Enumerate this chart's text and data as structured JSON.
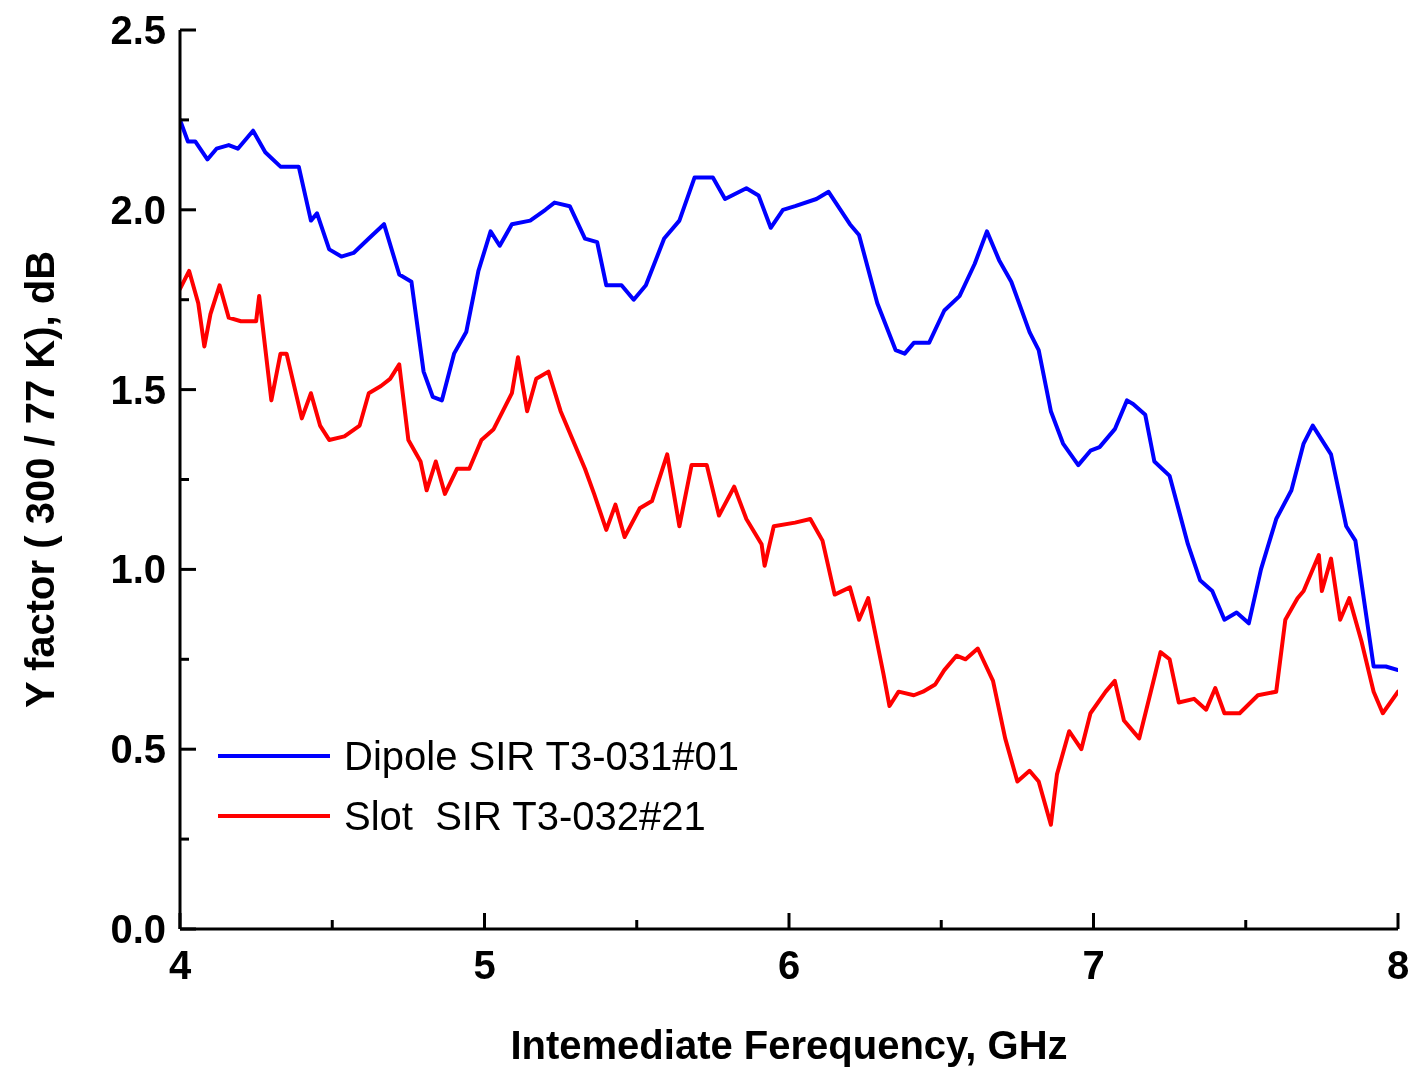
{
  "chart_data": {
    "type": "line",
    "xlabel": "Intemediate Ferequency, GHz",
    "ylabel": "Y factor ( 300 / 77 K), dB",
    "xlim": [
      4,
      8
    ],
    "ylim": [
      0,
      2.5
    ],
    "xticks": [
      4,
      {
        "value": 4.5,
        "label": null
      },
      5,
      {
        "value": 5.5,
        "label": null
      },
      6,
      {
        "value": 6.5,
        "label": null
      },
      7,
      {
        "value": 7.5,
        "label": null
      },
      8
    ],
    "yticks": [
      {
        "value": 0,
        "label": "0.0"
      },
      {
        "value": 0.25,
        "label": null
      },
      0.5,
      {
        "value": 0.75,
        "label": null
      },
      {
        "value": 1,
        "label": "1.0"
      },
      {
        "value": 1.25,
        "label": null
      },
      1.5,
      {
        "value": 1.75,
        "label": null
      },
      {
        "value": 2,
        "label": "2.0"
      },
      {
        "value": 2.25,
        "label": null
      },
      2.5
    ],
    "grid": false,
    "legend": "bottom left",
    "marker": "none",
    "line_style": "solid",
    "series": [
      {
        "name": "Dipole SIR T3-031#01",
        "color": "#0000ff",
        "x": [
          4.0,
          4.026,
          4.05,
          4.09,
          4.12,
          4.16,
          4.19,
          4.24,
          4.28,
          4.33,
          4.39,
          4.43,
          4.45,
          4.49,
          4.53,
          4.57,
          4.62,
          4.67,
          4.72,
          4.76,
          4.8,
          4.83,
          4.86,
          4.9,
          4.94,
          4.98,
          5.02,
          5.05,
          5.09,
          5.15,
          5.2,
          5.23,
          5.28,
          5.33,
          5.37,
          5.4,
          5.45,
          5.49,
          5.53,
          5.59,
          5.64,
          5.69,
          5.75,
          5.79,
          5.86,
          5.9,
          5.94,
          5.98,
          6.02,
          6.09,
          6.13,
          6.2,
          6.23,
          6.29,
          6.35,
          6.38,
          6.41,
          6.46,
          6.51,
          6.56,
          6.61,
          6.65,
          6.69,
          6.73,
          6.79,
          6.82,
          6.86,
          6.9,
          6.95,
          6.99,
          7.02,
          7.07,
          7.11,
          7.13,
          7.17,
          7.2,
          7.25,
          7.31,
          7.35,
          7.39,
          7.43,
          7.47,
          7.51,
          7.55,
          7.6,
          7.65,
          7.69,
          7.72,
          7.78,
          7.83,
          7.86,
          7.92,
          7.96,
          8.0
        ],
        "values": [
          2.25,
          2.19,
          2.19,
          2.14,
          2.17,
          2.18,
          2.17,
          2.22,
          2.16,
          2.12,
          2.12,
          1.97,
          1.99,
          1.89,
          1.87,
          1.88,
          1.92,
          1.96,
          1.82,
          1.8,
          1.55,
          1.48,
          1.47,
          1.6,
          1.66,
          1.83,
          1.94,
          1.9,
          1.96,
          1.97,
          2.0,
          2.02,
          2.01,
          1.92,
          1.91,
          1.79,
          1.79,
          1.75,
          1.79,
          1.92,
          1.97,
          2.09,
          2.09,
          2.03,
          2.06,
          2.04,
          1.95,
          2.0,
          2.01,
          2.03,
          2.05,
          1.96,
          1.93,
          1.74,
          1.61,
          1.6,
          1.63,
          1.63,
          1.72,
          1.76,
          1.85,
          1.94,
          1.86,
          1.8,
          1.66,
          1.61,
          1.44,
          1.35,
          1.29,
          1.33,
          1.34,
          1.39,
          1.47,
          1.46,
          1.43,
          1.3,
          1.26,
          1.07,
          0.97,
          0.94,
          0.86,
          0.88,
          0.85,
          1.0,
          1.14,
          1.22,
          1.35,
          1.4,
          1.32,
          1.12,
          1.08,
          0.73,
          0.73,
          0.72
        ]
      },
      {
        "name": "Slot  SIR T3-032#21",
        "color": "#ff0000",
        "x": [
          4.0,
          4.03,
          4.06,
          4.08,
          4.1,
          4.13,
          4.16,
          4.2,
          4.25,
          4.26,
          4.3,
          4.33,
          4.35,
          4.4,
          4.43,
          4.46,
          4.49,
          4.54,
          4.59,
          4.62,
          4.66,
          4.69,
          4.72,
          4.75,
          4.79,
          4.81,
          4.84,
          4.87,
          4.91,
          4.95,
          4.99,
          5.03,
          5.06,
          5.09,
          5.11,
          5.14,
          5.17,
          5.21,
          5.25,
          5.29,
          5.33,
          5.36,
          5.4,
          5.43,
          5.46,
          5.51,
          5.55,
          5.6,
          5.64,
          5.68,
          5.73,
          5.77,
          5.82,
          5.86,
          5.91,
          5.92,
          5.95,
          6.02,
          6.07,
          6.11,
          6.15,
          6.2,
          6.23,
          6.26,
          6.31,
          6.33,
          6.36,
          6.41,
          6.44,
          6.48,
          6.51,
          6.55,
          6.58,
          6.62,
          6.67,
          6.71,
          6.75,
          6.79,
          6.82,
          6.86,
          6.88,
          6.92,
          6.96,
          6.99,
          7.04,
          7.07,
          7.1,
          7.15,
          7.2,
          7.22,
          7.25,
          7.28,
          7.33,
          7.37,
          7.4,
          7.43,
          7.48,
          7.54,
          7.6,
          7.63,
          7.67,
          7.69,
          7.74,
          7.75,
          7.78,
          7.81,
          7.84,
          7.88,
          7.92,
          7.95,
          8.0
        ],
        "values": [
          1.78,
          1.83,
          1.74,
          1.62,
          1.71,
          1.79,
          1.7,
          1.69,
          1.69,
          1.76,
          1.47,
          1.6,
          1.6,
          1.42,
          1.49,
          1.4,
          1.36,
          1.37,
          1.4,
          1.49,
          1.51,
          1.53,
          1.57,
          1.36,
          1.3,
          1.22,
          1.3,
          1.21,
          1.28,
          1.28,
          1.36,
          1.39,
          1.44,
          1.49,
          1.59,
          1.44,
          1.53,
          1.55,
          1.44,
          1.36,
          1.28,
          1.21,
          1.11,
          1.18,
          1.09,
          1.17,
          1.19,
          1.32,
          1.12,
          1.29,
          1.29,
          1.15,
          1.23,
          1.14,
          1.07,
          1.01,
          1.12,
          1.13,
          1.14,
          1.08,
          0.93,
          0.95,
          0.86,
          0.92,
          0.71,
          0.62,
          0.66,
          0.65,
          0.66,
          0.68,
          0.72,
          0.76,
          0.75,
          0.78,
          0.69,
          0.53,
          0.41,
          0.44,
          0.41,
          0.29,
          0.43,
          0.55,
          0.5,
          0.6,
          0.66,
          0.69,
          0.58,
          0.53,
          0.7,
          0.77,
          0.75,
          0.63,
          0.64,
          0.61,
          0.67,
          0.6,
          0.6,
          0.65,
          0.66,
          0.86,
          0.92,
          0.94,
          1.04,
          0.94,
          1.03,
          0.86,
          0.92,
          0.8,
          0.66,
          0.6,
          0.66
        ]
      }
    ]
  }
}
